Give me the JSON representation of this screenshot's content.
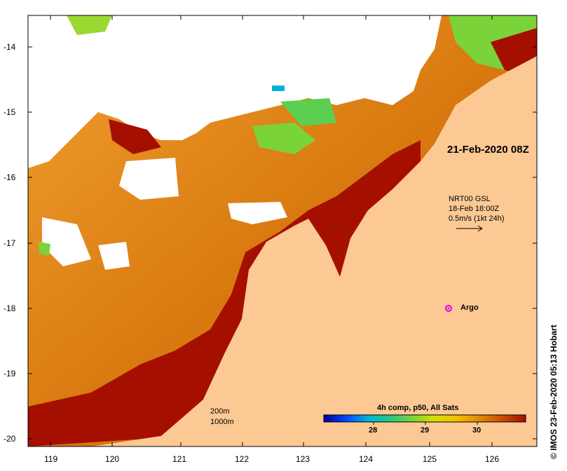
{
  "map": {
    "lat_ticks": [
      "-14",
      "-15",
      "-16",
      "-17",
      "-18",
      "-19",
      "-20"
    ],
    "lon_ticks": [
      "119",
      "120",
      "121",
      "122",
      "123",
      "124",
      "125",
      "126"
    ],
    "land_color": "#fcc994",
    "cloud_color": "#ffffff",
    "hot_color": "#a50f00"
  },
  "annotations": {
    "timestamp": "21-Feb-2020 08Z",
    "current_source": "NRT00 GSL",
    "current_time": "18-Feb 18:00Z",
    "current_scale": "0.5m/s (1kt 24h)",
    "argo_label": "Argo",
    "depth_200": "200m",
    "depth_1000": "1000m"
  },
  "colorbar": {
    "title": "4h comp, p50, All Sats",
    "ticks": [
      "28",
      "29",
      "30"
    ],
    "colors": [
      "#00008f",
      "#0047ff",
      "#00b3d6",
      "#28c880",
      "#7bd33a",
      "#d8e000",
      "#f0c000",
      "#e08a00",
      "#c85000",
      "#a50f00"
    ]
  },
  "credit": "IMOS 23-Feb-2020 05:13 Hobart"
}
